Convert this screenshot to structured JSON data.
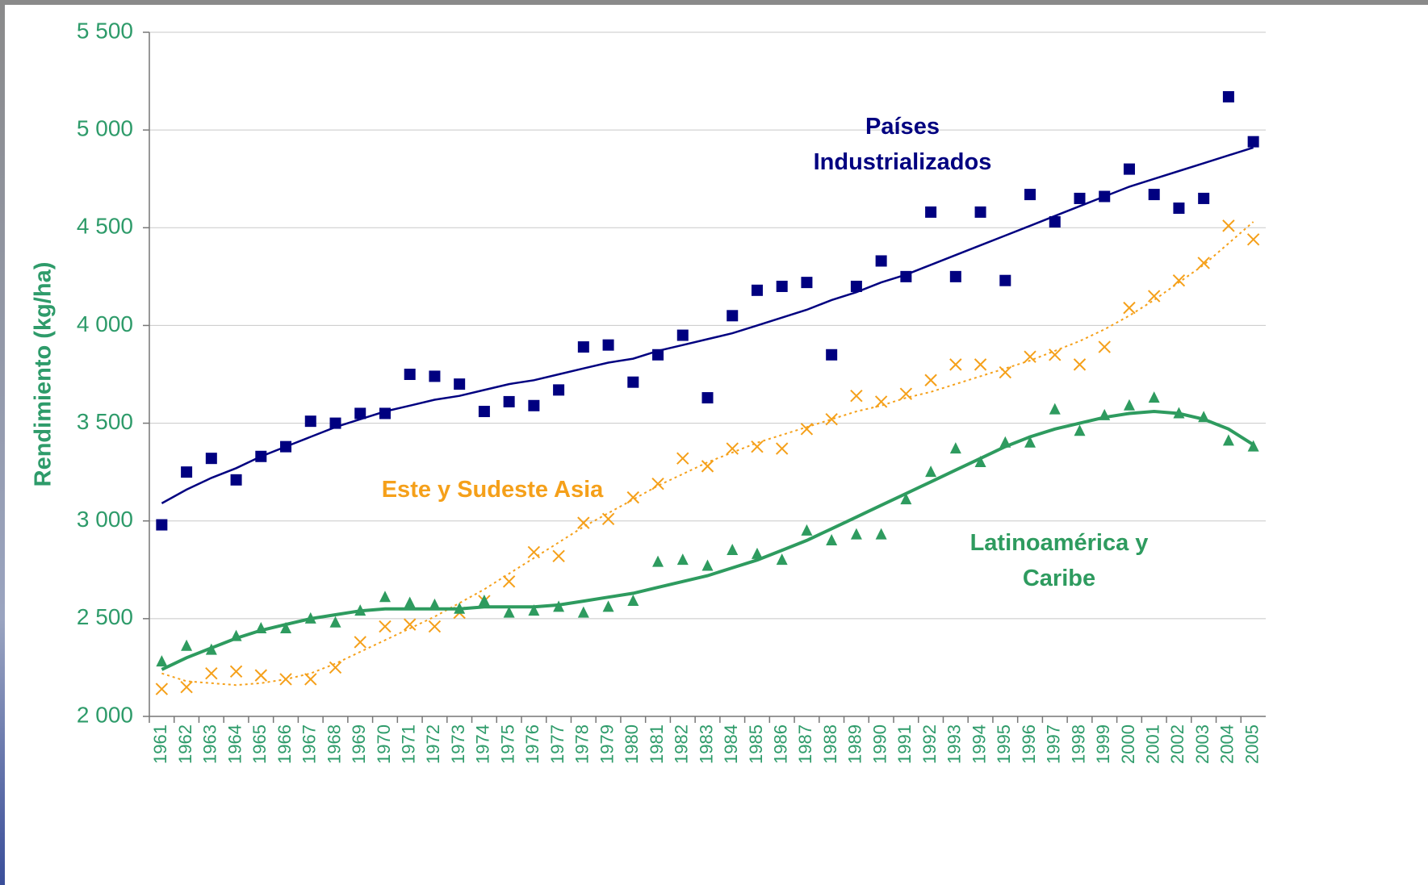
{
  "chart_data": {
    "type": "line",
    "y_axis_label": "Rendimiento (kg/ha)",
    "categories": [
      "1961",
      "1962",
      "1963",
      "1964",
      "1965",
      "1966",
      "1967",
      "1968",
      "1969",
      "1970",
      "1971",
      "1972",
      "1973",
      "1974",
      "1975",
      "1976",
      "1977",
      "1978",
      "1979",
      "1980",
      "1981",
      "1982",
      "1983",
      "1984",
      "1985",
      "1986",
      "1987",
      "1988",
      "1989",
      "1990",
      "1991",
      "1992",
      "1993",
      "1994",
      "1995",
      "1996",
      "1997",
      "1998",
      "1999",
      "2000",
      "2001",
      "2002",
      "2003",
      "2004",
      "2005"
    ],
    "ylim": [
      2000,
      5500
    ],
    "yticks": [
      {
        "value": 2000,
        "label": "2 000"
      },
      {
        "value": 2500,
        "label": "2 500"
      },
      {
        "value": 3000,
        "label": "3 000"
      },
      {
        "value": 3500,
        "label": "3 500"
      },
      {
        "value": 4000,
        "label": "4 000"
      },
      {
        "value": 4500,
        "label": "4 500"
      },
      {
        "value": 5000,
        "label": "5 000"
      },
      {
        "value": 5500,
        "label": "5 500"
      }
    ],
    "grid": true,
    "series": [
      {
        "name": "Países Industrializados",
        "color": "#000080",
        "marker": "square",
        "trend_style": "solid",
        "values": [
          2980,
          3250,
          3320,
          3210,
          3330,
          3380,
          3510,
          3500,
          3550,
          3550,
          3750,
          3740,
          3700,
          3560,
          3610,
          3590,
          3670,
          3890,
          3900,
          3710,
          3850,
          3950,
          3630,
          4050,
          4180,
          4200,
          4220,
          3850,
          4200,
          4330,
          4250,
          4580,
          4250,
          4580,
          4230,
          4670,
          4530,
          4650,
          4660,
          4800,
          4670,
          4600,
          4650,
          5170,
          4940
        ],
        "trend": [
          3090,
          3160,
          3220,
          3270,
          3330,
          3380,
          3430,
          3480,
          3520,
          3560,
          3590,
          3620,
          3640,
          3670,
          3700,
          3720,
          3750,
          3780,
          3810,
          3830,
          3870,
          3900,
          3930,
          3960,
          4000,
          4040,
          4080,
          4130,
          4170,
          4220,
          4260,
          4310,
          4360,
          4410,
          4460,
          4510,
          4560,
          4610,
          4660,
          4710,
          4750,
          4790,
          4830,
          4870,
          4910
        ]
      },
      {
        "name": "Este y Sudeste Asia",
        "color": "#f5a01a",
        "marker": "x",
        "trend_style": "dotted",
        "values": [
          2140,
          2150,
          2220,
          2230,
          2210,
          2190,
          2190,
          2250,
          2380,
          2460,
          2470,
          2460,
          2530,
          2590,
          2690,
          2840,
          2820,
          2990,
          3010,
          3120,
          3190,
          3320,
          3280,
          3370,
          3380,
          3370,
          3470,
          3520,
          3640,
          3610,
          3650,
          3720,
          3800,
          3800,
          3760,
          3840,
          3850,
          3800,
          3890,
          4090,
          4150,
          4230,
          4320,
          4510,
          4440
        ],
        "trend": [
          2220,
          2180,
          2170,
          2160,
          2170,
          2190,
          2220,
          2270,
          2330,
          2390,
          2450,
          2510,
          2580,
          2650,
          2730,
          2810,
          2890,
          2970,
          3040,
          3110,
          3180,
          3240,
          3300,
          3350,
          3400,
          3440,
          3480,
          3520,
          3560,
          3590,
          3630,
          3660,
          3700,
          3740,
          3780,
          3820,
          3870,
          3920,
          3980,
          4050,
          4130,
          4220,
          4310,
          4420,
          4530
        ]
      },
      {
        "name": "Latinoamérica y Caribe",
        "color": "#2e9b5f",
        "marker": "triangle",
        "trend_style": "solid",
        "values": [
          2280,
          2360,
          2340,
          2410,
          2450,
          2450,
          2500,
          2480,
          2540,
          2610,
          2580,
          2570,
          2550,
          2590,
          2530,
          2540,
          2560,
          2530,
          2560,
          2590,
          2790,
          2800,
          2770,
          2850,
          2830,
          2800,
          2950,
          2900,
          2930,
          2930,
          3110,
          3250,
          3370,
          3300,
          3400,
          3400,
          3570,
          3460,
          3540,
          3590,
          3630,
          3550,
          3530,
          3410,
          3380
        ],
        "trend": [
          2240,
          2300,
          2350,
          2400,
          2440,
          2470,
          2500,
          2520,
          2540,
          2550,
          2550,
          2550,
          2550,
          2560,
          2560,
          2560,
          2570,
          2590,
          2610,
          2630,
          2660,
          2690,
          2720,
          2760,
          2800,
          2850,
          2900,
          2960,
          3020,
          3080,
          3140,
          3200,
          3260,
          3320,
          3380,
          3430,
          3470,
          3500,
          3530,
          3550,
          3560,
          3550,
          3520,
          3470,
          3390
        ]
      }
    ]
  }
}
